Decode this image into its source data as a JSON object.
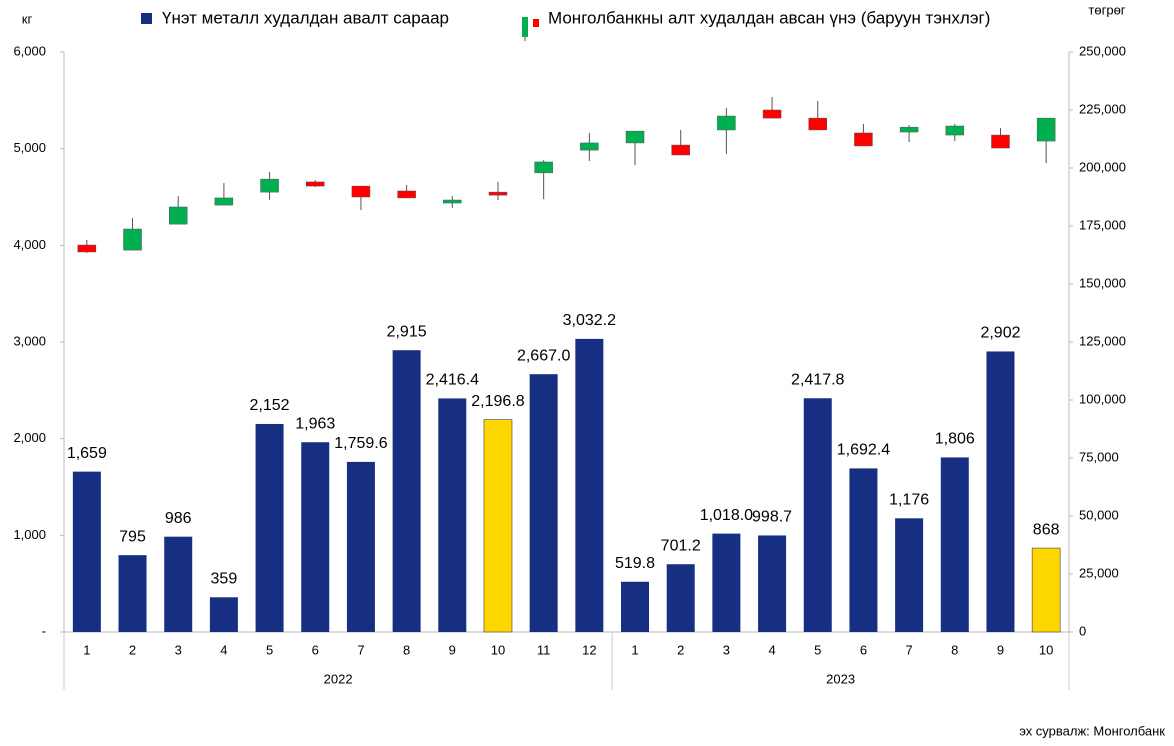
{
  "chart_data": {
    "type": "bar-candlestick",
    "y_label": "кг",
    "y2_label": "төгрөг",
    "source": "эх сурвалж: Монголбанк",
    "categories": [
      "1",
      "2",
      "3",
      "4",
      "5",
      "6",
      "7",
      "8",
      "9",
      "10",
      "11",
      "12",
      "1",
      "2",
      "3",
      "4",
      "5",
      "6",
      "7",
      "8",
      "9",
      "10"
    ],
    "groups": [
      {
        "label": "2022",
        "count": 12
      },
      {
        "label": "2023",
        "count": 10
      }
    ],
    "ylim": [
      0,
      6000
    ],
    "yticks": [
      {
        "value": 0,
        "label": "-"
      },
      {
        "value": 1000,
        "label": "1,000"
      },
      {
        "value": 2000,
        "label": "2,000"
      },
      {
        "value": 3000,
        "label": "3,000"
      },
      {
        "value": 4000,
        "label": "4,000"
      },
      {
        "value": 5000,
        "label": "5,000"
      },
      {
        "value": 6000,
        "label": "6,000"
      }
    ],
    "y2lim": [
      0,
      250000
    ],
    "y2ticks": [
      0,
      {
        "value": 25000,
        "label": "25,000"
      },
      {
        "value": 50000,
        "label": "50,000"
      },
      {
        "value": 75000,
        "label": "75,000"
      },
      {
        "value": 100000,
        "label": "100,000"
      },
      {
        "value": 125000,
        "label": "125,000"
      },
      {
        "value": 150000,
        "label": "150,000"
      },
      {
        "value": 175000,
        "label": "175,000"
      },
      {
        "value": 200000,
        "label": "200,000"
      },
      {
        "value": 225000,
        "label": "225,000"
      },
      {
        "value": 250000,
        "label": "250,000"
      }
    ],
    "series": [
      {
        "name": "Үнэт металл худалдан авалт сараар",
        "type": "bar",
        "color": "#172f82",
        "highlight_color": "#ffd700",
        "highlight": [
          9,
          21
        ],
        "values": [
          1659,
          795,
          986,
          359,
          2152,
          1963,
          1759.6,
          2915,
          2416.4,
          2196.8,
          2667.0,
          3032.2,
          519.8,
          701.2,
          1018.0,
          998.7,
          2417.8,
          1692.4,
          1176,
          1806,
          2902,
          868
        ],
        "value_labels": [
          "1,659",
          "795",
          "986",
          "359",
          "2,152",
          "1,963",
          "1,759.6",
          "2,915",
          "2,416.4",
          "2,196.8",
          "2,667.0",
          "3,032.2",
          "519.8",
          "701.2",
          "1,018.0",
          "998.7",
          "2,417.8",
          "1,692.4",
          "1,176",
          "1,806",
          "2,902",
          "868"
        ]
      },
      {
        "name": "Монголбанкны алт худалдан авсан үнэ (баруун тэнхлэг)",
        "type": "candlestick",
        "axis": "y2",
        "up_color": "#00b050",
        "down_color": "#ff0000",
        "open": [
          166800,
          164600,
          175800,
          184000,
          189600,
          194000,
          192200,
          190100,
          184900,
          189600,
          197900,
          207700,
          210800,
          209900,
          216400,
          225000,
          221500,
          215100,
          215500,
          214200,
          214200,
          211600
        ],
        "close": [
          163800,
          173700,
          183200,
          187100,
          195200,
          192200,
          187500,
          187100,
          186200,
          188300,
          202600,
          210800,
          215900,
          205600,
          222400,
          221500,
          216400,
          209500,
          217600,
          218100,
          208600,
          221500
        ],
        "high": [
          169000,
          178400,
          187900,
          193500,
          198300,
          194800,
          192200,
          192700,
          187900,
          194000,
          203400,
          215100,
          215900,
          216400,
          225800,
          230600,
          228900,
          219000,
          218500,
          219000,
          217200,
          221500
        ],
        "low": [
          163400,
          164600,
          175800,
          184000,
          186200,
          191800,
          181900,
          187100,
          182800,
          186200,
          186600,
          203000,
          201300,
          205600,
          206000,
          221500,
          216400,
          209500,
          211200,
          211600,
          208600,
          202100
        ]
      }
    ]
  }
}
